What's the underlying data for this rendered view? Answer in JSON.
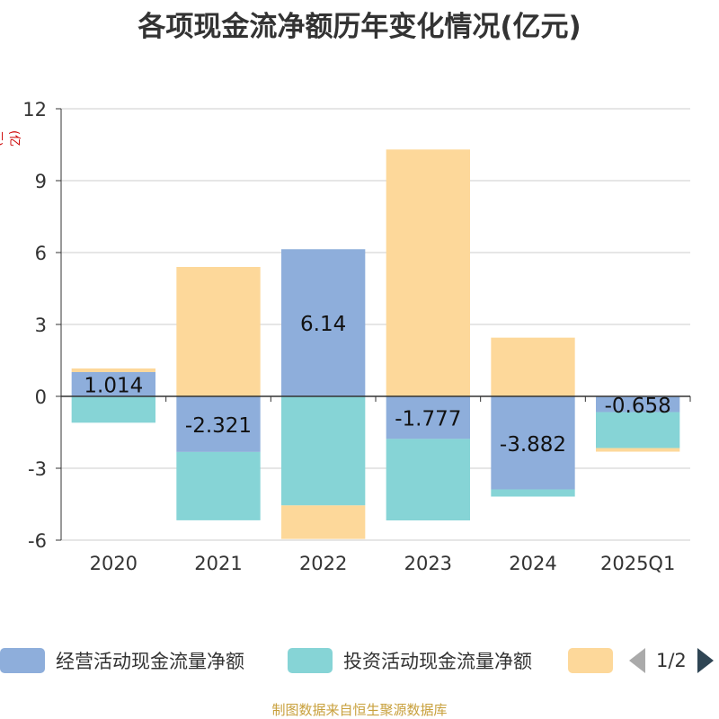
{
  "title": "各项现金流净额历年变化情况(亿元)",
  "unit": "(亿元)",
  "footer": "制图数据来自恒生聚源数据库",
  "legend": {
    "items": [
      {
        "label": "经营活动现金流量净额",
        "color": "#8eaedb"
      },
      {
        "label": "投资活动现金流量净额",
        "color": "#86d4d6"
      },
      {
        "label": "",
        "color": "#fdd89a"
      }
    ],
    "page": "1/2"
  },
  "chart_data": {
    "type": "bar",
    "stacked": true,
    "title": "各项现金流净额历年变化情况(亿元)",
    "ylabel": "(亿元)",
    "xlabel": "",
    "categories": [
      "2020",
      "2021",
      "2022",
      "2023",
      "2024",
      "2025Q1"
    ],
    "ylim": [
      -6,
      12
    ],
    "yticks": [
      -6,
      -3,
      0,
      3,
      6,
      9,
      12
    ],
    "ytick_labels": [
      "-6",
      "-3",
      "0",
      "3",
      "6",
      "9",
      "12"
    ],
    "series": [
      {
        "name": "经营活动现金流量净额",
        "color": "#8eaedb",
        "values": [
          1.014,
          -2.321,
          6.14,
          -1.777,
          -3.882,
          -0.658
        ],
        "labels": [
          "1.014",
          "-2.321",
          "6.14",
          "-1.777",
          "-3.882",
          "-0.658"
        ]
      },
      {
        "name": "投资活动现金流量净额",
        "color": "#86d4d6",
        "values": [
          -1.1,
          -2.85,
          -4.55,
          -3.4,
          -0.3,
          -1.5
        ]
      },
      {
        "name": "",
        "color": "#fdd89a",
        "values": [
          0.15,
          5.4,
          -1.4,
          10.3,
          2.45,
          -0.15
        ]
      }
    ]
  }
}
